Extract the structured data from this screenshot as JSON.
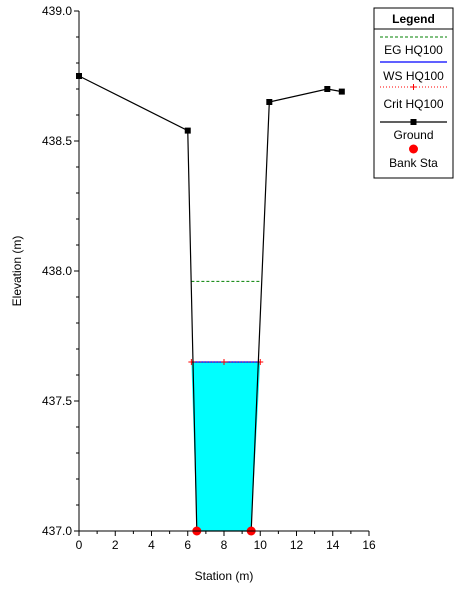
{
  "chart_data": {
    "type": "line",
    "xlabel": "Station (m)",
    "ylabel": "Elevation (m)",
    "xlim": [
      0,
      16
    ],
    "ylim": [
      437.0,
      439.0
    ],
    "x_ticks": [
      0,
      2,
      4,
      6,
      8,
      10,
      12,
      14,
      16
    ],
    "x_tick_labels": [
      "0",
      "2",
      "4",
      "6",
      "8",
      "10",
      "12",
      "14",
      "16"
    ],
    "y_ticks": [
      437.0,
      437.5,
      438.0,
      438.5,
      439.0
    ],
    "y_tick_labels": [
      "437.0",
      "437.5",
      "438.0",
      "438.5",
      "439.0"
    ],
    "grid": false,
    "legend_position": "top-right",
    "legend_title": "Legend",
    "legend": [
      "EG HQ100",
      "WS HQ100",
      "Crit HQ100",
      "Ground",
      "Bank Sta"
    ],
    "series": [
      {
        "name": "EG HQ100",
        "color": "#008000",
        "style": "dashed",
        "x": [
          6.2,
          10.0
        ],
        "y": [
          437.96,
          437.96
        ]
      },
      {
        "name": "WS HQ100",
        "color": "#0000ff",
        "style": "solid",
        "x": [
          6.2,
          10.0
        ],
        "y": [
          437.65,
          437.65
        ]
      },
      {
        "name": "Crit HQ100",
        "color": "#ff0000",
        "style": "dotted-plus",
        "x": [
          6.2,
          8.0,
          10.0
        ],
        "y": [
          437.65,
          437.65,
          437.65
        ]
      },
      {
        "name": "Ground",
        "color": "#000000",
        "style": "solid-square",
        "x": [
          0.0,
          6.0,
          6.5,
          9.5,
          10.5,
          13.7,
          14.5
        ],
        "y": [
          438.75,
          438.54,
          437.0,
          437.0,
          438.65,
          438.7,
          438.69
        ]
      },
      {
        "name": "Bank Sta",
        "color": "#ff0000",
        "style": "circle",
        "x": [
          6.5,
          9.5
        ],
        "y": [
          437.0,
          437.0
        ]
      }
    ],
    "water_fill": {
      "color": "#00ffff",
      "elevation": 437.65,
      "x": [
        6.2,
        6.5,
        9.5,
        10.0
      ],
      "y": [
        437.65,
        437.0,
        437.0,
        437.65
      ]
    }
  }
}
